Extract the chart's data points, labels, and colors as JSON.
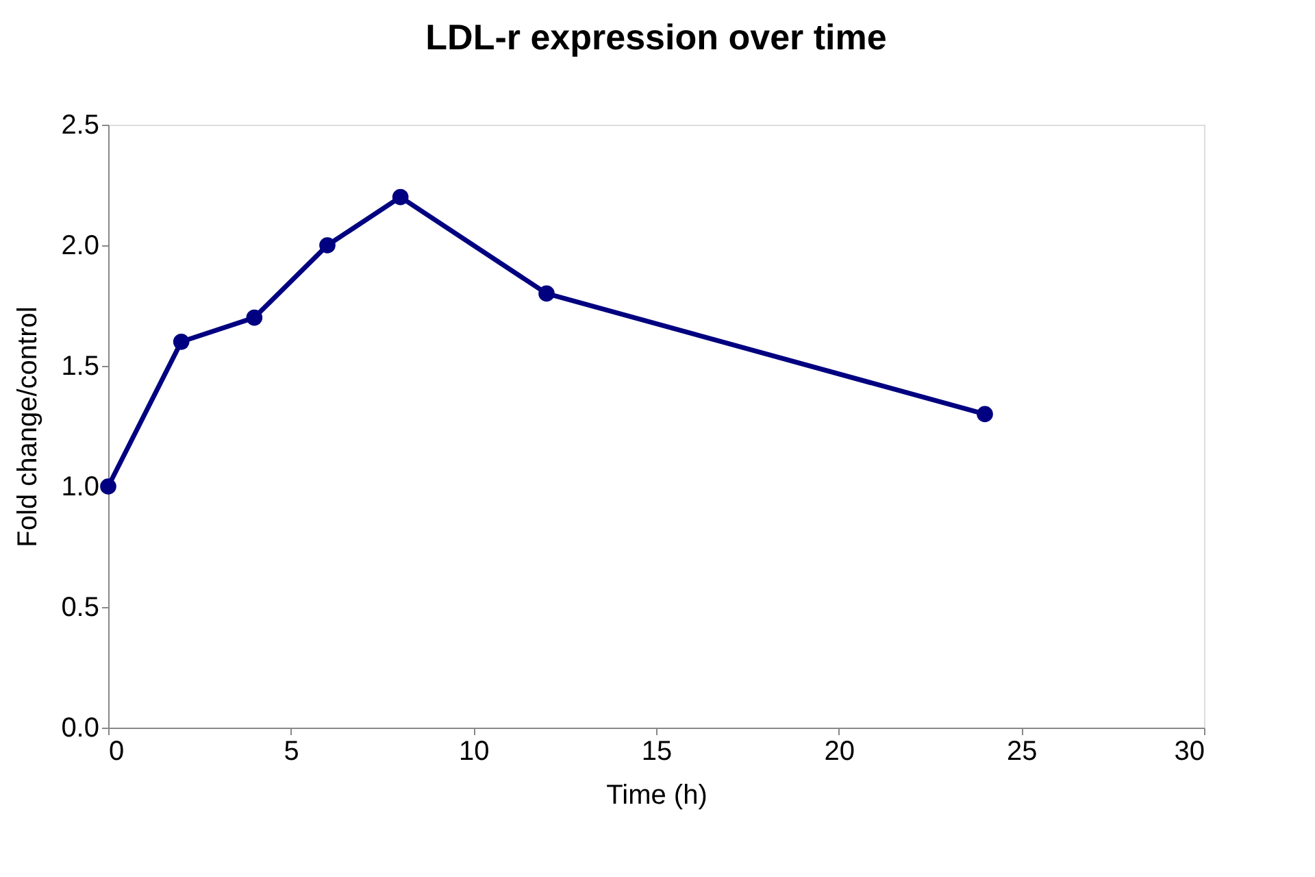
{
  "chart_data": {
    "type": "line",
    "title": "LDL-r expression over time",
    "xlabel": "Time (h)",
    "ylabel": "Fold change/control",
    "x": [
      0,
      2,
      4,
      6,
      8,
      12,
      24
    ],
    "values": [
      1.0,
      1.6,
      1.7,
      2.0,
      2.2,
      1.8,
      1.3
    ],
    "color": "#000080",
    "xlim": [
      0,
      30
    ],
    "xticks": [
      0,
      5,
      10,
      15,
      20,
      25,
      30
    ],
    "ylim": [
      0,
      2.5
    ],
    "yticks": [
      {
        "value": 0,
        "label": "0.0"
      },
      0.5,
      {
        "value": 1,
        "label": "1.0"
      },
      1.5,
      {
        "value": 2,
        "label": "2.0"
      },
      2.5
    ],
    "grid": false,
    "marker": "circle",
    "line_style": "solid"
  }
}
